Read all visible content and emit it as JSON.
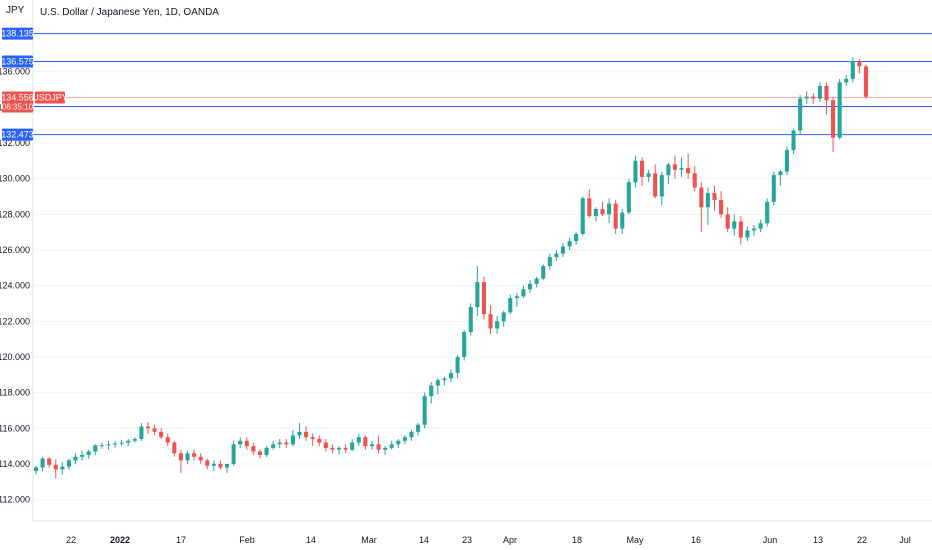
{
  "header": {
    "currency_label": "JPY",
    "title": "U.S. Dollar / Japanese Yen, 1D, OANDA"
  },
  "colors": {
    "up": "#26a69a",
    "down": "#ef5350",
    "hline": "#2962ff",
    "price_line": "#f7a9a7",
    "grid": "#f0f3fa"
  },
  "chart_data": {
    "type": "candlestick",
    "title": "U.S. Dollar / Japanese Yen, 1D, OANDA",
    "y_axis": {
      "side": "left",
      "ticks": [
        "136.000",
        "134.000",
        "132.000",
        "130.000",
        "128.000",
        "126.000",
        "124.000",
        "122.000",
        "120.000",
        "118.000",
        "116.000",
        "114.000",
        "112.000"
      ],
      "range": [
        110.8,
        138.9
      ]
    },
    "x_axis": {
      "labels": [
        "22",
        "2022",
        "17",
        "Feb",
        "14",
        "Mar",
        "14",
        "23",
        "Apr",
        "18",
        "May",
        "16",
        "Jun",
        "13",
        "22",
        "Jul"
      ],
      "bold": [
        "2022"
      ]
    },
    "grid": true,
    "horizontal_lines": [
      {
        "value": 138.135,
        "label": "138.135"
      },
      {
        "value": 136.575,
        "label": "136.575"
      },
      {
        "value": 134.047,
        "label": "134.047"
      },
      {
        "value": 132.473,
        "label": "132.473"
      }
    ],
    "last_price": {
      "value": 134.556,
      "label": "134.556",
      "countdown": "06:35:10",
      "symbol": "USDJPY"
    },
    "candles": [
      [
        113.6,
        113.9,
        113.4,
        113.8
      ],
      [
        113.8,
        114.4,
        113.6,
        114.3
      ],
      [
        114.3,
        114.4,
        113.8,
        113.95
      ],
      [
        113.95,
        114.25,
        113.2,
        113.7
      ],
      [
        113.7,
        114.1,
        113.4,
        113.85
      ],
      [
        113.85,
        114.3,
        113.7,
        114.2
      ],
      [
        114.2,
        114.6,
        114.0,
        114.4
      ],
      [
        114.4,
        114.75,
        114.2,
        114.5
      ],
      [
        114.5,
        114.8,
        114.3,
        114.7
      ],
      [
        114.7,
        115.1,
        114.5,
        115.05
      ],
      [
        115.05,
        115.2,
        114.85,
        115.05
      ],
      [
        115.05,
        115.3,
        114.8,
        115.1
      ],
      [
        115.1,
        115.3,
        114.9,
        115.15
      ],
      [
        115.15,
        115.35,
        115.0,
        115.2
      ],
      [
        115.2,
        115.4,
        115.0,
        115.3
      ],
      [
        115.3,
        115.5,
        115.2,
        115.4
      ],
      [
        115.4,
        116.3,
        115.3,
        116.1
      ],
      [
        116.1,
        116.35,
        115.7,
        116.0
      ],
      [
        116.0,
        116.2,
        115.6,
        115.8
      ],
      [
        115.8,
        116.0,
        115.4,
        115.5
      ],
      [
        115.5,
        115.7,
        115.0,
        115.2
      ],
      [
        115.2,
        115.3,
        114.4,
        114.6
      ],
      [
        114.6,
        114.8,
        113.5,
        114.2
      ],
      [
        114.2,
        114.75,
        114.0,
        114.6
      ],
      [
        114.6,
        114.8,
        114.2,
        114.4
      ],
      [
        114.4,
        114.6,
        114.0,
        114.2
      ],
      [
        114.2,
        114.3,
        113.7,
        113.9
      ],
      [
        113.9,
        114.2,
        113.6,
        114.0
      ],
      [
        114.0,
        114.2,
        113.7,
        113.8
      ],
      [
        113.8,
        114.0,
        113.5,
        114.0
      ],
      [
        114.0,
        115.3,
        113.9,
        115.1
      ],
      [
        115.1,
        115.5,
        114.9,
        115.3
      ],
      [
        115.3,
        115.5,
        114.8,
        115.0
      ],
      [
        115.0,
        115.2,
        114.5,
        114.7
      ],
      [
        114.7,
        114.8,
        114.3,
        114.5
      ],
      [
        114.5,
        115.0,
        114.4,
        114.9
      ],
      [
        114.9,
        115.3,
        114.8,
        115.1
      ],
      [
        115.1,
        115.4,
        114.9,
        115.2
      ],
      [
        115.2,
        115.4,
        114.9,
        115.1
      ],
      [
        115.1,
        115.9,
        115.0,
        115.6
      ],
      [
        115.6,
        116.3,
        115.4,
        115.8
      ],
      [
        115.8,
        116.1,
        115.3,
        115.5
      ],
      [
        115.5,
        115.7,
        115.0,
        115.4
      ],
      [
        115.4,
        115.6,
        115.0,
        115.2
      ],
      [
        115.2,
        115.4,
        114.7,
        114.9
      ],
      [
        114.9,
        115.1,
        114.6,
        114.8
      ],
      [
        114.8,
        115.0,
        114.5,
        114.9
      ],
      [
        114.9,
        115.1,
        114.6,
        114.8
      ],
      [
        114.8,
        115.4,
        114.7,
        115.2
      ],
      [
        115.2,
        115.7,
        115.0,
        115.5
      ],
      [
        115.5,
        115.6,
        114.8,
        115.0
      ],
      [
        115.0,
        115.3,
        114.8,
        115.1
      ],
      [
        115.1,
        115.6,
        114.6,
        114.8
      ],
      [
        114.8,
        115.0,
        114.5,
        114.9
      ],
      [
        114.9,
        115.3,
        114.8,
        115.1
      ],
      [
        115.1,
        115.4,
        114.9,
        115.3
      ],
      [
        115.3,
        115.6,
        115.1,
        115.5
      ],
      [
        115.5,
        115.9,
        115.3,
        115.8
      ],
      [
        115.8,
        116.3,
        115.6,
        116.2
      ],
      [
        116.2,
        118.0,
        116.0,
        117.8
      ],
      [
        117.8,
        118.6,
        117.4,
        118.4
      ],
      [
        118.4,
        118.8,
        117.9,
        118.7
      ],
      [
        118.7,
        118.9,
        118.4,
        118.8
      ],
      [
        118.8,
        119.3,
        118.6,
        119.1
      ],
      [
        119.1,
        120.1,
        118.8,
        120.0
      ],
      [
        120.0,
        121.5,
        119.8,
        121.4
      ],
      [
        121.4,
        123.0,
        121.2,
        122.8
      ],
      [
        122.8,
        125.1,
        122.3,
        124.2
      ],
      [
        124.2,
        124.5,
        122.1,
        122.4
      ],
      [
        122.4,
        122.9,
        121.3,
        121.6
      ],
      [
        121.6,
        122.3,
        121.3,
        122.0
      ],
      [
        122.0,
        122.6,
        121.7,
        122.5
      ],
      [
        122.5,
        123.5,
        122.4,
        123.3
      ],
      [
        123.3,
        123.6,
        122.8,
        123.4
      ],
      [
        123.4,
        124.0,
        123.3,
        123.8
      ],
      [
        123.8,
        124.3,
        123.6,
        124.1
      ],
      [
        124.1,
        124.5,
        123.9,
        124.4
      ],
      [
        124.4,
        125.2,
        124.3,
        125.1
      ],
      [
        125.1,
        125.8,
        124.9,
        125.6
      ],
      [
        125.6,
        126.0,
        125.4,
        125.8
      ],
      [
        125.8,
        126.4,
        125.6,
        126.2
      ],
      [
        126.2,
        126.7,
        126.0,
        126.5
      ],
      [
        126.5,
        127.0,
        126.3,
        126.9
      ],
      [
        126.9,
        129.0,
        126.8,
        128.9
      ],
      [
        128.9,
        129.4,
        127.8,
        127.9
      ],
      [
        127.9,
        128.4,
        127.6,
        128.3
      ],
      [
        128.3,
        128.7,
        127.9,
        128.0
      ],
      [
        128.0,
        128.9,
        127.5,
        128.6
      ],
      [
        128.6,
        128.8,
        126.9,
        127.2
      ],
      [
        127.2,
        128.3,
        126.9,
        128.1
      ],
      [
        128.1,
        130.0,
        128.0,
        129.8
      ],
      [
        129.8,
        131.3,
        129.5,
        131.0
      ],
      [
        131.0,
        131.2,
        129.6,
        130.1
      ],
      [
        130.1,
        130.5,
        129.8,
        130.3
      ],
      [
        130.3,
        130.8,
        128.9,
        129.0
      ],
      [
        129.0,
        130.4,
        128.5,
        130.2
      ],
      [
        130.2,
        130.9,
        129.7,
        130.8
      ],
      [
        130.8,
        131.3,
        130.0,
        130.5
      ],
      [
        130.5,
        131.2,
        130.1,
        130.6
      ],
      [
        130.6,
        131.4,
        130.0,
        130.3
      ],
      [
        130.3,
        130.7,
        129.3,
        129.5
      ],
      [
        129.5,
        129.8,
        127.0,
        128.4
      ],
      [
        128.4,
        129.5,
        127.4,
        129.2
      ],
      [
        129.2,
        129.6,
        128.2,
        128.8
      ],
      [
        128.8,
        129.3,
        127.8,
        128.0
      ],
      [
        128.0,
        128.4,
        127.0,
        127.2
      ],
      [
        127.2,
        128.0,
        126.8,
        127.6
      ],
      [
        127.6,
        127.9,
        126.3,
        126.7
      ],
      [
        126.7,
        127.3,
        126.5,
        127.1
      ],
      [
        127.1,
        127.4,
        126.8,
        127.2
      ],
      [
        127.2,
        127.7,
        127.0,
        127.5
      ],
      [
        127.5,
        128.9,
        127.3,
        128.7
      ],
      [
        128.7,
        130.4,
        128.5,
        130.2
      ],
      [
        130.2,
        130.5,
        129.6,
        130.4
      ],
      [
        130.4,
        131.8,
        130.2,
        131.6
      ],
      [
        131.6,
        132.8,
        131.4,
        132.7
      ],
      [
        132.7,
        134.7,
        132.5,
        134.5
      ],
      [
        134.5,
        134.9,
        134.2,
        134.6
      ],
      [
        134.6,
        134.8,
        134.2,
        134.5
      ],
      [
        134.5,
        135.4,
        134.3,
        135.2
      ],
      [
        135.2,
        135.4,
        133.6,
        134.4
      ],
      [
        134.4,
        134.6,
        131.5,
        132.3
      ],
      [
        132.3,
        135.6,
        132.2,
        135.4
      ],
      [
        135.4,
        135.8,
        135.2,
        135.6
      ],
      [
        135.6,
        136.8,
        135.4,
        136.6
      ],
      [
        136.6,
        136.7,
        135.9,
        136.3
      ],
      [
        136.3,
        136.4,
        134.5,
        134.6
      ]
    ]
  }
}
